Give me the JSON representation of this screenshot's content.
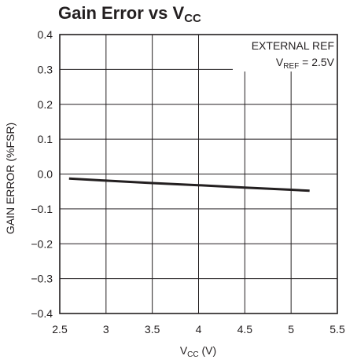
{
  "chart_data": {
    "type": "line",
    "title": {
      "text": "Gain Error vs V",
      "sub": "CC"
    },
    "xlabel": {
      "text": "V",
      "sub": "CC",
      "tail": " (V)"
    },
    "ylabel": "GAIN ERROR (%FSR)",
    "xlim": [
      2.5,
      5.5
    ],
    "ylim": [
      -0.4,
      0.4
    ],
    "xticks": [
      2.5,
      3,
      3.5,
      4,
      4.5,
      5,
      5.5
    ],
    "xtick_labels": [
      "2.5",
      "3",
      "3.5",
      "4",
      "4.5",
      "5",
      "5.5"
    ],
    "yticks": [
      0.4,
      0.3,
      0.2,
      0.1,
      0.0,
      -0.1,
      -0.2,
      -0.3,
      -0.4
    ],
    "ytick_labels": [
      "0.4",
      "0.3",
      "0.2",
      "0.1",
      "0.0",
      "−0.1",
      "−0.2",
      "−0.3",
      "−0.4"
    ],
    "grid": true,
    "annotations": [
      {
        "text": "EXTERNAL REF"
      },
      {
        "text": "V",
        "sub": "REF",
        "tail": " = 2.5V"
      }
    ],
    "series": [
      {
        "x": [
          2.6,
          3.0,
          3.5,
          4.0,
          4.5,
          5.0,
          5.2
        ],
        "y": [
          -0.013,
          -0.019,
          -0.026,
          -0.032,
          -0.039,
          -0.045,
          -0.048
        ]
      }
    ],
    "colors": {
      "line": "#231f20",
      "axes": "#231f20",
      "grid": "#231f20"
    }
  }
}
